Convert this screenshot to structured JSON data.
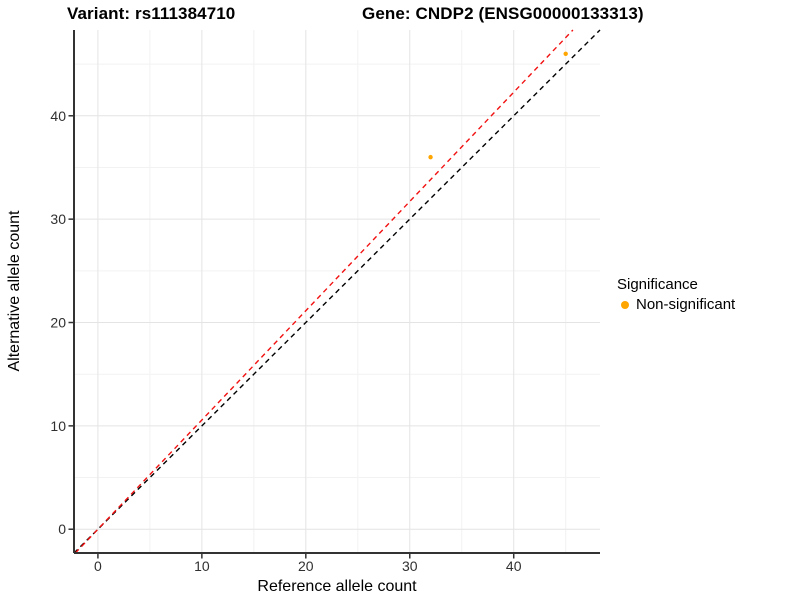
{
  "header": {
    "title_left": "Variant: rs111384710",
    "title_right": "Gene: CNDP2 (ENSG00000133313)"
  },
  "chart_data": {
    "type": "scatter",
    "title": "Variant: rs111384710   Gene: CNDP2 (ENSG00000133313)",
    "xlabel": "Reference allele count",
    "ylabel": "Alternative allele count",
    "xlim": [
      -2.3,
      48.3
    ],
    "ylim": [
      -2.3,
      48.3
    ],
    "x_major_ticks": [
      0,
      10,
      20,
      30,
      40
    ],
    "y_major_ticks": [
      0,
      10,
      20,
      30,
      40
    ],
    "x_minor_ticks": [
      5,
      15,
      25,
      35,
      45
    ],
    "y_minor_ticks": [
      5,
      15,
      25,
      35,
      45
    ],
    "grid": true,
    "legend_position": "right",
    "points": [
      {
        "x": 32,
        "y": 36,
        "series": "Non-significant"
      },
      {
        "x": 45,
        "y": 46,
        "series": "Non-significant"
      }
    ],
    "point_radius": 2.2,
    "reference_lines": [
      {
        "name": "identity-line",
        "slope": 1.0,
        "intercept": 0,
        "color": "#000000",
        "style": "dashed"
      },
      {
        "name": "allelic-ratio-line",
        "slope": 1.057,
        "intercept": 0,
        "color": "#F21111",
        "style": "dashed"
      }
    ],
    "legend": {
      "title": "Significance",
      "items": [
        {
          "label": "Non-significant",
          "color": "#FFA500"
        }
      ]
    },
    "colors": {
      "point": "#FFA500",
      "grid_major": "#E4E4E4",
      "grid_minor": "#F2F2F2",
      "axis_line": "#333333",
      "tick_mark": "#333333",
      "tick_label": "#303030"
    }
  }
}
